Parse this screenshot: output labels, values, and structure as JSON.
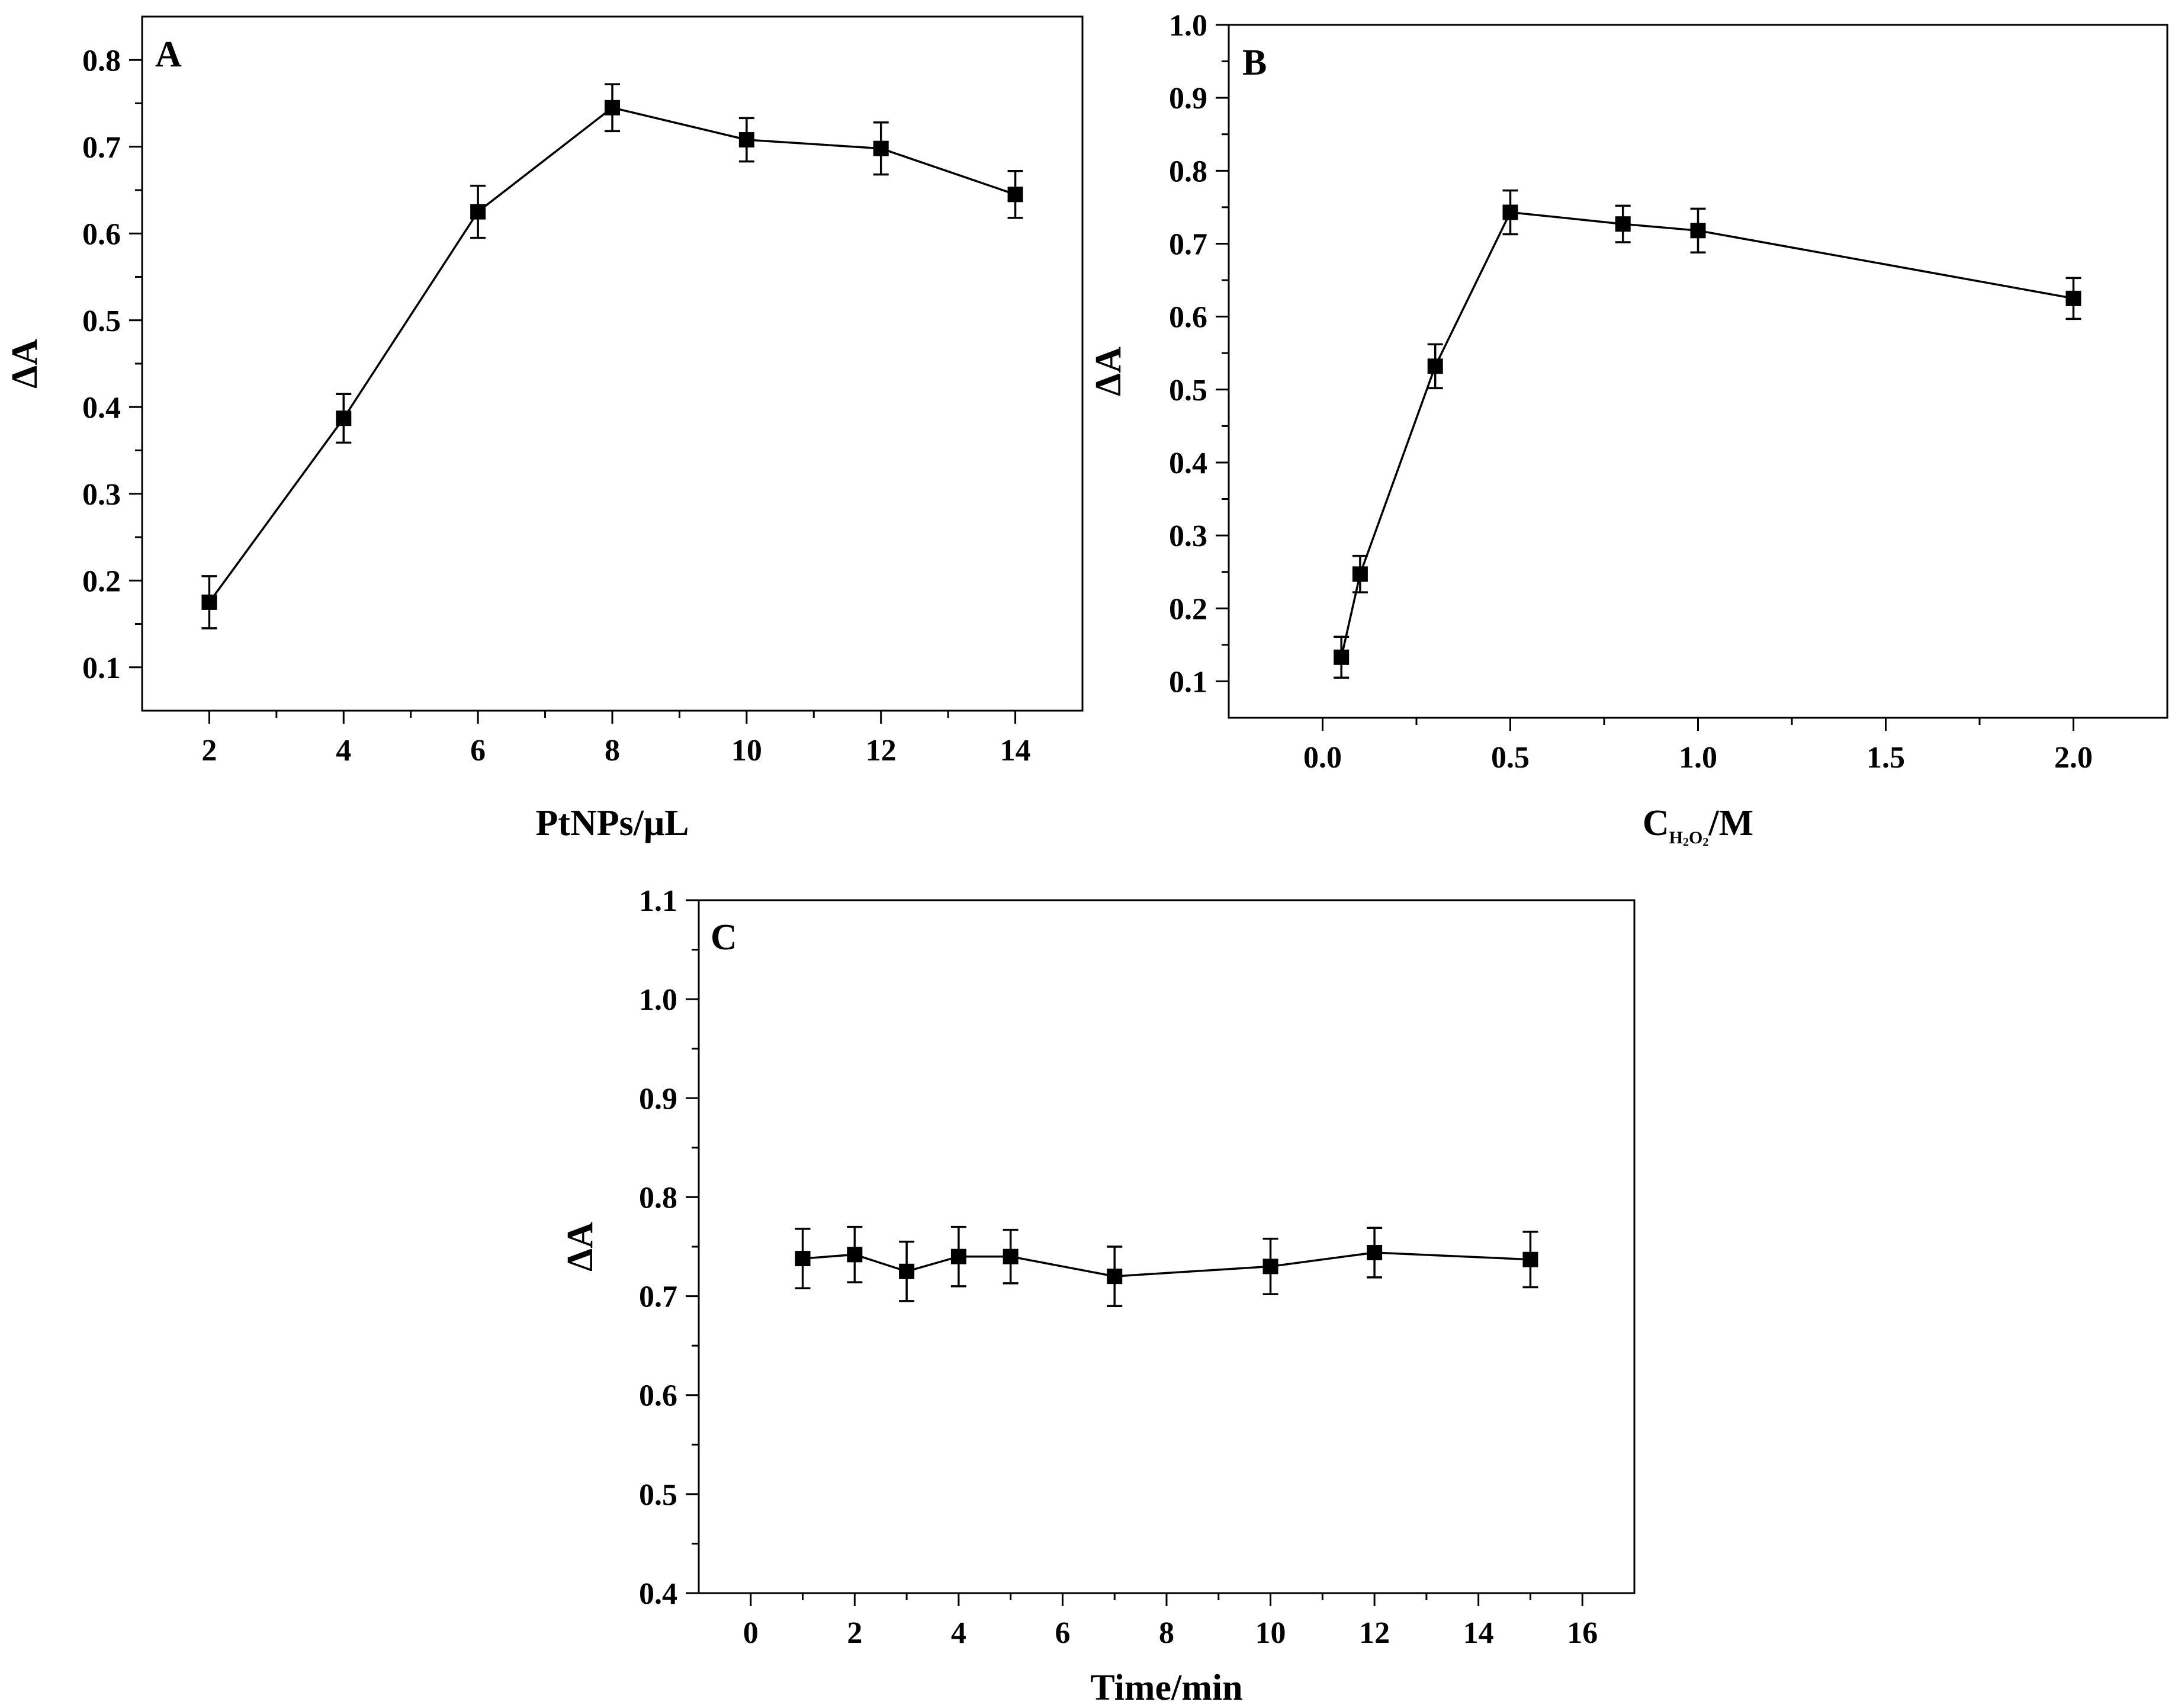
{
  "chart_data": [
    {
      "type": "line",
      "panel_label": "A",
      "title": "",
      "xlabel": "PtNPs/μL",
      "xlabel_parts": [],
      "ylabel": "ΔA",
      "xlim": [
        1,
        15
      ],
      "ylim": [
        0.05,
        0.85
      ],
      "xticks": [
        2,
        4,
        6,
        8,
        10,
        12,
        14
      ],
      "xtick_labels": [
        "2",
        "4",
        "6",
        "8",
        "10",
        "12",
        "14"
      ],
      "xminor": true,
      "yticks": [
        0.1,
        0.2,
        0.3,
        0.4,
        0.5,
        0.6,
        0.7,
        0.8
      ],
      "ytick_labels": [
        "0.1",
        "0.2",
        "0.3",
        "0.4",
        "0.5",
        "0.6",
        "0.7",
        "0.8"
      ],
      "grid": false,
      "x": [
        2,
        4,
        6,
        8,
        10,
        12,
        14
      ],
      "y": [
        0.175,
        0.387,
        0.625,
        0.745,
        0.708,
        0.698,
        0.645
      ],
      "yerr": [
        0.03,
        0.028,
        0.03,
        0.027,
        0.025,
        0.03,
        0.027
      ]
    },
    {
      "type": "line",
      "panel_label": "B",
      "title": "",
      "xlabel": "CH2O2/M",
      "xlabel_parts": [
        "C",
        "H",
        "2",
        "O",
        "2",
        "/M"
      ],
      "ylabel": "ΔA",
      "xlim": [
        -0.25,
        2.25
      ],
      "ylim": [
        0.05,
        1.0
      ],
      "xticks": [
        0.0,
        0.5,
        1.0,
        1.5,
        2.0
      ],
      "xtick_labels": [
        "0.0",
        "0.5",
        "1.0",
        "1.5",
        "2.0"
      ],
      "xminor": true,
      "yticks": [
        0.1,
        0.2,
        0.3,
        0.4,
        0.5,
        0.6,
        0.7,
        0.8,
        0.9,
        1.0
      ],
      "ytick_labels": [
        "0.1",
        "0.2",
        "0.3",
        "0.4",
        "0.5",
        "0.6",
        "0.7",
        "0.8",
        "0.9",
        "1.0"
      ],
      "grid": false,
      "x": [
        0.05,
        0.1,
        0.3,
        0.5,
        0.8,
        1.0,
        2.0
      ],
      "y": [
        0.133,
        0.247,
        0.532,
        0.743,
        0.727,
        0.718,
        0.625
      ],
      "yerr": [
        0.028,
        0.025,
        0.03,
        0.03,
        0.025,
        0.03,
        0.028
      ]
    },
    {
      "type": "line",
      "panel_label": "C",
      "title": "",
      "xlabel": "Time/min",
      "xlabel_parts": [],
      "ylabel": "ΔA",
      "xlim": [
        -1,
        17
      ],
      "ylim": [
        0.4,
        1.1
      ],
      "xticks": [
        0,
        2,
        4,
        6,
        8,
        10,
        12,
        14,
        16
      ],
      "xtick_labels": [
        "0",
        "2",
        "4",
        "6",
        "8",
        "10",
        "12",
        "14",
        "16"
      ],
      "xminor": true,
      "yticks": [
        0.4,
        0.5,
        0.6,
        0.7,
        0.8,
        0.9,
        1.0,
        1.1
      ],
      "ytick_labels": [
        "0.4",
        "0.5",
        "0.6",
        "0.7",
        "0.8",
        "0.9",
        "1.0",
        "1.1"
      ],
      "grid": false,
      "x": [
        1,
        2,
        3,
        4,
        5,
        7,
        10,
        12,
        15
      ],
      "y": [
        0.738,
        0.742,
        0.725,
        0.74,
        0.74,
        0.72,
        0.73,
        0.744,
        0.737
      ],
      "yerr": [
        0.03,
        0.028,
        0.03,
        0.03,
        0.027,
        0.03,
        0.028,
        0.025,
        0.028
      ]
    }
  ]
}
